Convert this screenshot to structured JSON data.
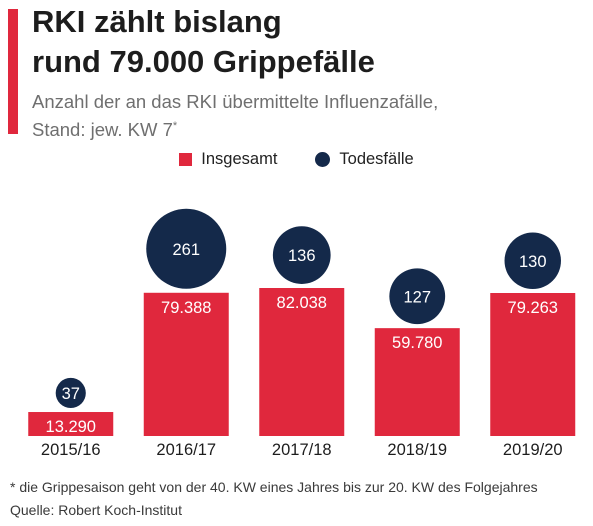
{
  "header": {
    "title_line1": "RKI zählt bislang",
    "title_line2": "rund 79.000 Grippefälle",
    "subtitle_line1": "Anzahl der an das RKI übermittelte Influenzafälle,",
    "subtitle_line2": "Stand: jew. KW 7",
    "subtitle_mark": "*"
  },
  "legend": {
    "bar_label": "Insgesamt",
    "dot_label": "Todesfälle"
  },
  "footer": {
    "footnote": "* die Grippesaison geht von der 40. KW eines Jahres bis zur 20. KW des Folgejahres",
    "source": "Quelle: Robert Koch-Institut"
  },
  "colors": {
    "bar": "#e0283d",
    "bubble": "#14294a",
    "accent": "#e0283d"
  },
  "chart_data": {
    "type": "bar",
    "categories": [
      "2015/16",
      "2016/17",
      "2017/18",
      "2018/19",
      "2019/20"
    ],
    "series": [
      {
        "name": "Insgesamt",
        "values": [
          13290,
          79388,
          82038,
          59780,
          79263
        ],
        "labels": [
          "13.290",
          "79.388",
          "82.038",
          "59.780",
          "79.263"
        ]
      },
      {
        "name": "Todesfälle",
        "values": [
          37,
          261,
          136,
          127,
          130
        ],
        "labels": [
          "37",
          "261",
          "136",
          "127",
          "130"
        ]
      }
    ],
    "ylim": [
      0,
      82038
    ],
    "grid": false,
    "legend_position": "top-center"
  }
}
